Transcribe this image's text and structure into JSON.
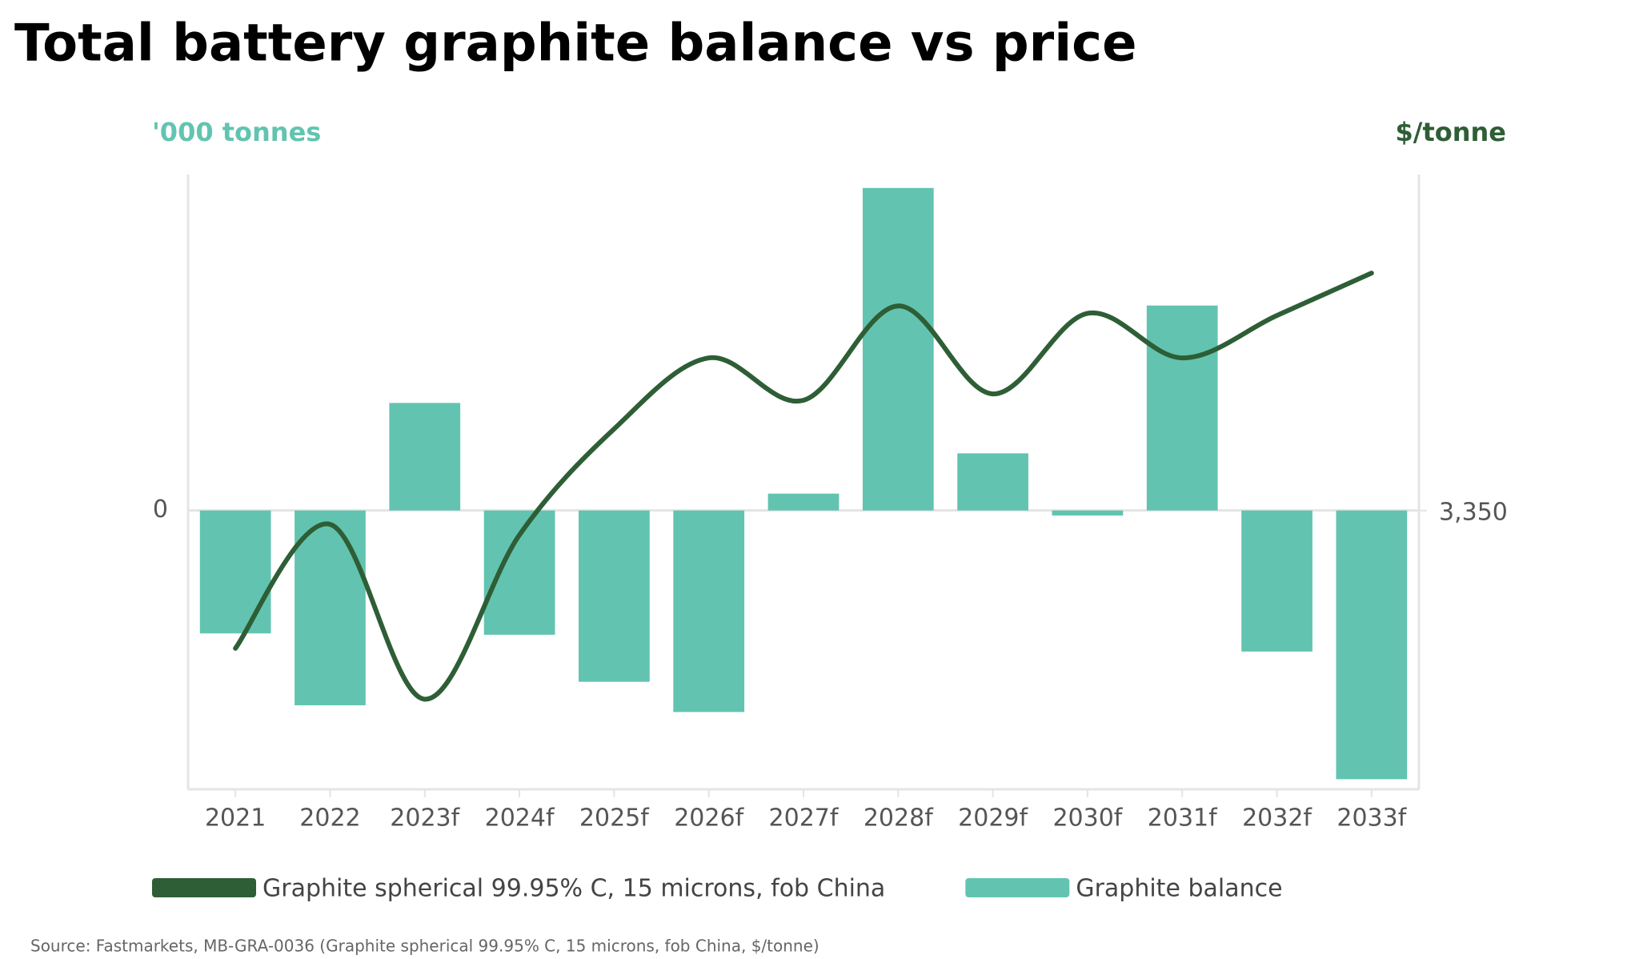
{
  "chart_data": {
    "type": "bar",
    "title": "Total battery graphite balance vs price",
    "y_label": "'000 tonnes",
    "y2_label": "$/tonne",
    "source": "Source: Fastmarkets, MB-GRA-0036 (Graphite spherical 99.95% C, 15 microns, fob China, $/tonne)",
    "categories": [
      "2021",
      "2022",
      "2023f",
      "2024f",
      "2025f",
      "2026f",
      "2027f",
      "2028f",
      "2029f",
      "2030f",
      "2031f",
      "2032f",
      "2033f"
    ],
    "series": [
      {
        "name": "Graphite spherical 99.95% C, 15 microns, fob China",
        "type": "line",
        "axis": "y2",
        "color": "#2e5e36",
        "values": [
          2700,
          3285,
          2460,
          3235,
          3735,
          4070,
          3870,
          4315,
          3900,
          4280,
          4070,
          4270,
          4470
        ]
      },
      {
        "name": "Graphite balance",
        "type": "bar",
        "color": "#62c4b0",
        "values": [
          -36.6,
          -58,
          32,
          -37,
          -51,
          -60,
          5,
          96,
          17,
          -1.5,
          61,
          -42,
          -80
        ]
      }
    ],
    "ylim": [
      -83,
      100
    ],
    "yticks": [
      0
    ],
    "y2lim": [
      2035,
      4935
    ],
    "y2ticks": [
      {
        "value": 3350,
        "label": "3,350"
      }
    ],
    "grid": true
  }
}
